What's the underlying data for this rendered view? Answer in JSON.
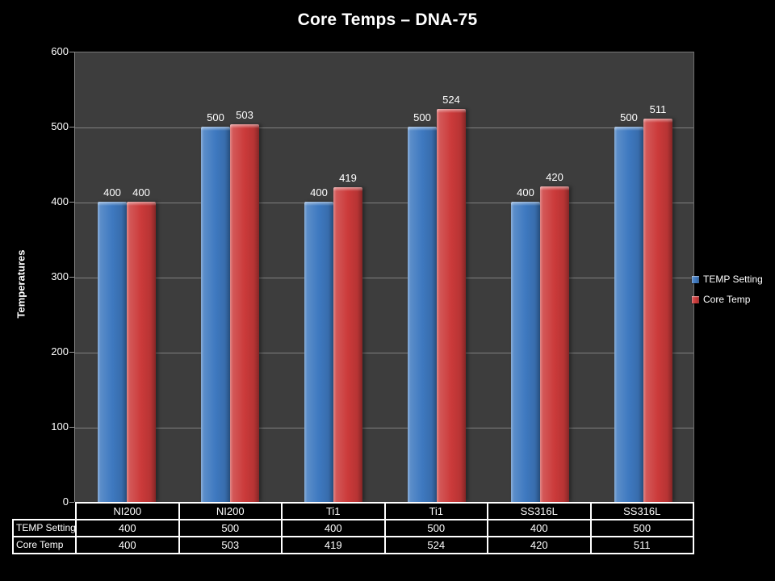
{
  "title": "Core Temps – DNA-75",
  "chart_data": {
    "type": "bar",
    "title": "Core Temps – DNA-75",
    "xlabel": "",
    "ylabel": "Temperatures",
    "ylim": [
      0,
      600
    ],
    "ytick_interval": 100,
    "grid": true,
    "legend_position": "right",
    "data_labels": true,
    "data_table_shown": true,
    "categories": [
      "NI200",
      "NI200",
      "Ti1",
      "Ti1",
      "SS316L",
      "SS316L"
    ],
    "series": [
      {
        "name": "TEMP Setting",
        "color": "#3E79C0",
        "values": [
          400,
          500,
          400,
          500,
          400,
          500
        ]
      },
      {
        "name": "Core Temp",
        "color": "#CB3A3A",
        "values": [
          400,
          503,
          419,
          524,
          420,
          511
        ]
      }
    ]
  },
  "colors": {
    "background": "#000000",
    "plot_background": "#3D3D3D",
    "gridline": "#8C8C8C",
    "text": "#FFFFFF",
    "table_border": "#FFFFFF",
    "series_blue": "#3E79C0",
    "series_red": "#CB3A3A"
  }
}
